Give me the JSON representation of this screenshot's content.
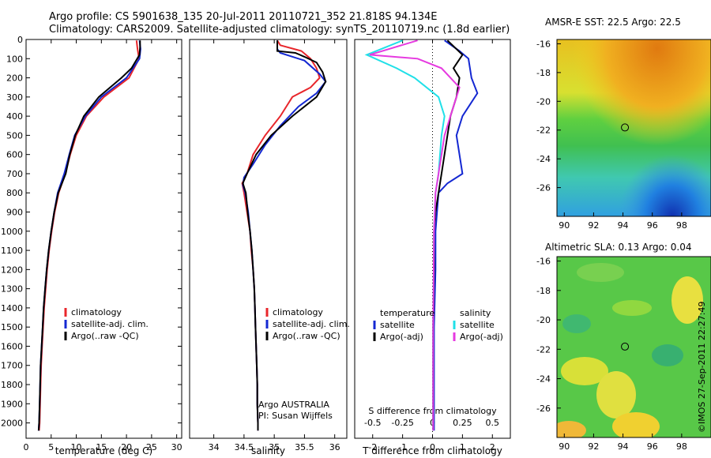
{
  "header": {
    "line1": "Argo profile: CS 5901638_135 20-Jul-2011 20110721_352 21.818S 94.134E",
    "line2": "Climatology: CARS2009. Satellite-adjusted climatology: synTS_20110719.nc (1.8d earlier)"
  },
  "side_credit": "©IMOS 27-Sep-2011 22:27:49",
  "colors": {
    "climatology": "#e8262b",
    "satellite": "#1428d2",
    "argo": "#000000",
    "salinity_satellite": "#20e0e8",
    "salinity_argo": "#e63ae0"
  },
  "chart_data": [
    {
      "type": "line",
      "panel": "temperature",
      "xlabel": "temperature (deg C)",
      "ylabel": "",
      "xlim": [
        0,
        31
      ],
      "ylim": [
        2080,
        0
      ],
      "xticks": [
        0,
        5,
        10,
        15,
        20,
        25,
        30
      ],
      "yticks": [
        0,
        100,
        200,
        300,
        400,
        500,
        600,
        700,
        800,
        900,
        1000,
        1100,
        1200,
        1300,
        1400,
        1500,
        1600,
        1700,
        1800,
        1900,
        2000
      ],
      "legend": [
        "climatology",
        "satellite-adj. clim.",
        "Argo(..raw -QC)"
      ],
      "series": [
        {
          "name": "climatology",
          "color_key": "climatology",
          "points": [
            [
              22.0,
              5
            ],
            [
              22.2,
              50
            ],
            [
              22.5,
              100
            ],
            [
              20.5,
              200
            ],
            [
              15.5,
              300
            ],
            [
              12.0,
              400
            ],
            [
              10.0,
              500
            ],
            [
              8.8,
              600
            ],
            [
              7.8,
              700
            ],
            [
              6.5,
              800
            ],
            [
              5.7,
              900
            ],
            [
              5.1,
              1000
            ],
            [
              4.6,
              1100
            ],
            [
              4.2,
              1200
            ],
            [
              3.9,
              1300
            ],
            [
              3.6,
              1400
            ],
            [
              3.4,
              1500
            ],
            [
              3.2,
              1600
            ],
            [
              3.0,
              1700
            ],
            [
              2.9,
              1800
            ],
            [
              2.8,
              1900
            ],
            [
              2.7,
              2000
            ],
            [
              2.6,
              2040
            ]
          ]
        },
        {
          "name": "satellite-adj. clim.",
          "color_key": "satellite",
          "points": [
            [
              22.6,
              5
            ],
            [
              22.8,
              50
            ],
            [
              22.6,
              100
            ],
            [
              20.0,
              200
            ],
            [
              15.0,
              300
            ],
            [
              11.8,
              400
            ],
            [
              9.7,
              500
            ],
            [
              8.6,
              600
            ],
            [
              7.6,
              700
            ],
            [
              6.3,
              800
            ],
            [
              5.6,
              900
            ],
            [
              5.0,
              1000
            ],
            [
              4.5,
              1100
            ],
            [
              4.1,
              1200
            ],
            [
              3.8,
              1300
            ],
            [
              3.5,
              1400
            ],
            [
              3.3,
              1500
            ],
            [
              3.1,
              1600
            ],
            [
              2.9,
              1700
            ],
            [
              2.8,
              1800
            ],
            [
              2.7,
              1900
            ],
            [
              2.6,
              2000
            ],
            [
              2.5,
              2040
            ]
          ]
        },
        {
          "name": "Argo(..raw -QC)",
          "color_key": "argo",
          "points": [
            [
              22.7,
              5
            ],
            [
              22.7,
              40
            ],
            [
              22.6,
              80
            ],
            [
              21.0,
              150
            ],
            [
              19.0,
              200
            ],
            [
              14.5,
              300
            ],
            [
              11.5,
              400
            ],
            [
              9.8,
              500
            ],
            [
              8.7,
              600
            ],
            [
              7.9,
              700
            ],
            [
              6.4,
              800
            ],
            [
              5.6,
              900
            ],
            [
              5.0,
              1000
            ],
            [
              4.5,
              1100
            ],
            [
              4.1,
              1200
            ],
            [
              3.8,
              1300
            ],
            [
              3.5,
              1400
            ],
            [
              3.3,
              1500
            ],
            [
              3.1,
              1600
            ],
            [
              2.9,
              1700
            ],
            [
              2.8,
              1800
            ],
            [
              2.7,
              1900
            ],
            [
              2.6,
              2000
            ],
            [
              2.5,
              2040
            ]
          ]
        }
      ]
    },
    {
      "type": "line",
      "panel": "salinity",
      "xlabel": "salinity",
      "ylabel": "",
      "xlim": [
        33.6,
        36.2
      ],
      "ylim": [
        2080,
        0
      ],
      "xticks": [
        34,
        34.5,
        35,
        35.5,
        36
      ],
      "legend": [
        "climatology",
        "satellite-adj. clim.",
        "Argo(..raw -QC)"
      ],
      "annotation": [
        "Argo AUSTRALIA",
        "PI: Susan Wijffels"
      ],
      "series": [
        {
          "name": "climatology",
          "color_key": "climatology",
          "points": [
            [
              35.05,
              5
            ],
            [
              35.1,
              30
            ],
            [
              35.45,
              60
            ],
            [
              35.6,
              100
            ],
            [
              35.7,
              150
            ],
            [
              35.75,
              200
            ],
            [
              35.6,
              250
            ],
            [
              35.3,
              300
            ],
            [
              35.1,
              400
            ],
            [
              34.85,
              500
            ],
            [
              34.65,
              600
            ],
            [
              34.55,
              700
            ],
            [
              34.47,
              750
            ],
            [
              34.5,
              800
            ],
            [
              34.55,
              900
            ],
            [
              34.6,
              1000
            ],
            [
              34.62,
              1100
            ],
            [
              34.65,
              1200
            ],
            [
              34.67,
              1300
            ],
            [
              34.68,
              1400
            ],
            [
              34.69,
              1500
            ],
            [
              34.7,
              1600
            ],
            [
              34.71,
              1700
            ],
            [
              34.72,
              1800
            ],
            [
              34.72,
              1900
            ],
            [
              34.73,
              2000
            ],
            [
              34.73,
              2040
            ]
          ]
        },
        {
          "name": "satellite-adj. clim.",
          "color_key": "satellite",
          "points": [
            [
              35.05,
              5
            ],
            [
              35.05,
              50
            ],
            [
              35.1,
              70
            ],
            [
              35.5,
              110
            ],
            [
              35.75,
              180
            ],
            [
              35.85,
              220
            ],
            [
              35.7,
              280
            ],
            [
              35.4,
              350
            ],
            [
              35.1,
              450
            ],
            [
              34.85,
              550
            ],
            [
              34.65,
              650
            ],
            [
              34.5,
              720
            ],
            [
              34.48,
              760
            ],
            [
              34.52,
              800
            ],
            [
              34.57,
              900
            ],
            [
              34.6,
              1000
            ],
            [
              34.63,
              1100
            ],
            [
              34.65,
              1200
            ],
            [
              34.67,
              1300
            ],
            [
              34.68,
              1400
            ],
            [
              34.69,
              1500
            ],
            [
              34.7,
              1600
            ],
            [
              34.71,
              1700
            ],
            [
              34.72,
              1800
            ],
            [
              34.72,
              1900
            ],
            [
              34.73,
              2000
            ],
            [
              34.73,
              2040
            ]
          ]
        },
        {
          "name": "Argo(..raw -QC)",
          "color_key": "argo",
          "points": [
            [
              35.05,
              5
            ],
            [
              35.05,
              60
            ],
            [
              35.35,
              70
            ],
            [
              35.5,
              90
            ],
            [
              35.7,
              120
            ],
            [
              35.8,
              170
            ],
            [
              35.85,
              220
            ],
            [
              35.7,
              300
            ],
            [
              35.3,
              400
            ],
            [
              34.95,
              500
            ],
            [
              34.7,
              600
            ],
            [
              34.55,
              700
            ],
            [
              34.48,
              750
            ],
            [
              34.53,
              800
            ],
            [
              34.56,
              900
            ],
            [
              34.6,
              1000
            ],
            [
              34.63,
              1100
            ],
            [
              34.65,
              1200
            ],
            [
              34.67,
              1300
            ],
            [
              34.68,
              1400
            ],
            [
              34.69,
              1500
            ],
            [
              34.7,
              1600
            ],
            [
              34.71,
              1700
            ],
            [
              34.72,
              1800
            ],
            [
              34.72,
              1900
            ],
            [
              34.73,
              2000
            ],
            [
              34.73,
              2040
            ]
          ]
        }
      ]
    },
    {
      "type": "line",
      "panel": "difference",
      "xlabel": "T difference from climatology",
      "x2label": "S difference from climatology",
      "xlim": [
        -2.6,
        2.6
      ],
      "ylim": [
        2080,
        0
      ],
      "xticks": [
        -2,
        -1,
        0,
        1,
        2
      ],
      "x2ticks": [
        "-0.5",
        "-0.25",
        "0",
        "0.25",
        "0.5"
      ],
      "legend_temperature_title": "temperature",
      "legend_salinity_title": "salinity",
      "legend_temperature": [
        "satellite",
        "Argo(-adj)"
      ],
      "legend_salinity": [
        "satellite",
        "Argo(-adj)"
      ],
      "series": [
        {
          "name": "satellite",
          "color_key": "satellite",
          "points": [
            [
              0.4,
              5
            ],
            [
              0.9,
              60
            ],
            [
              1.2,
              100
            ],
            [
              1.3,
              200
            ],
            [
              1.5,
              280
            ],
            [
              1.0,
              400
            ],
            [
              0.8,
              500
            ],
            [
              0.9,
              600
            ],
            [
              1.0,
              700
            ],
            [
              0.5,
              750
            ],
            [
              0.2,
              800
            ],
            [
              0.15,
              900
            ],
            [
              0.1,
              1000
            ],
            [
              0.1,
              1200
            ],
            [
              0.05,
              1500
            ],
            [
              0.05,
              2040
            ]
          ]
        },
        {
          "name": "Argo(-adj)",
          "color_key": "argo",
          "points": [
            [
              0.5,
              5
            ],
            [
              1.0,
              80
            ],
            [
              0.7,
              150
            ],
            [
              0.9,
              200
            ],
            [
              0.8,
              300
            ],
            [
              0.6,
              400
            ],
            [
              0.5,
              500
            ],
            [
              0.3,
              700
            ],
            [
              0.2,
              800
            ],
            [
              0.1,
              900
            ],
            [
              0.05,
              1000
            ],
            [
              0.05,
              1200
            ],
            [
              0.02,
              1500
            ],
            [
              0.02,
              2040
            ]
          ]
        },
        {
          "name": "satellite",
          "color_key": "salinity_satellite",
          "points": [
            [
              -1.0,
              5
            ],
            [
              -2.2,
              80
            ],
            [
              -1.2,
              150
            ],
            [
              -0.6,
              200
            ],
            [
              0.2,
              300
            ],
            [
              0.4,
              400
            ],
            [
              0.3,
              500
            ],
            [
              0.2,
              700
            ],
            [
              0.1,
              800
            ],
            [
              0.05,
              1000
            ],
            [
              0.02,
              1500
            ],
            [
              0.02,
              2040
            ]
          ]
        },
        {
          "name": "Argo(-adj)",
          "color_key": "salinity_argo",
          "points": [
            [
              -0.5,
              5
            ],
            [
              -2.1,
              80
            ],
            [
              -0.5,
              100
            ],
            [
              0.3,
              150
            ],
            [
              0.9,
              250
            ],
            [
              0.6,
              400
            ],
            [
              0.4,
              500
            ],
            [
              0.2,
              700
            ],
            [
              0.1,
              800
            ],
            [
              0.05,
              1000
            ],
            [
              0.02,
              1500
            ],
            [
              0.02,
              2040
            ]
          ]
        }
      ]
    },
    {
      "type": "heatmap",
      "panel": "sst_map",
      "title": "AMSR-E SST: 22.5  Argo: 22.5",
      "xlim": [
        89.5,
        100
      ],
      "ylim": [
        -28,
        -15.7
      ],
      "xticks": [
        90,
        92,
        94,
        96,
        98
      ],
      "yticks": [
        -16,
        -18,
        -20,
        -22,
        -24,
        -26
      ],
      "argo_position": [
        94.134,
        -21.818
      ]
    },
    {
      "type": "heatmap",
      "panel": "sla_map",
      "title": "Altimetric SLA: 0.13  Argo: 0.04",
      "xlim": [
        89.5,
        100
      ],
      "ylim": [
        -28,
        -15.7
      ],
      "xticks": [
        90,
        92,
        94,
        96,
        98
      ],
      "yticks": [
        -16,
        -18,
        -20,
        -22,
        -24,
        -26
      ],
      "argo_position": [
        94.134,
        -21.818
      ]
    }
  ]
}
